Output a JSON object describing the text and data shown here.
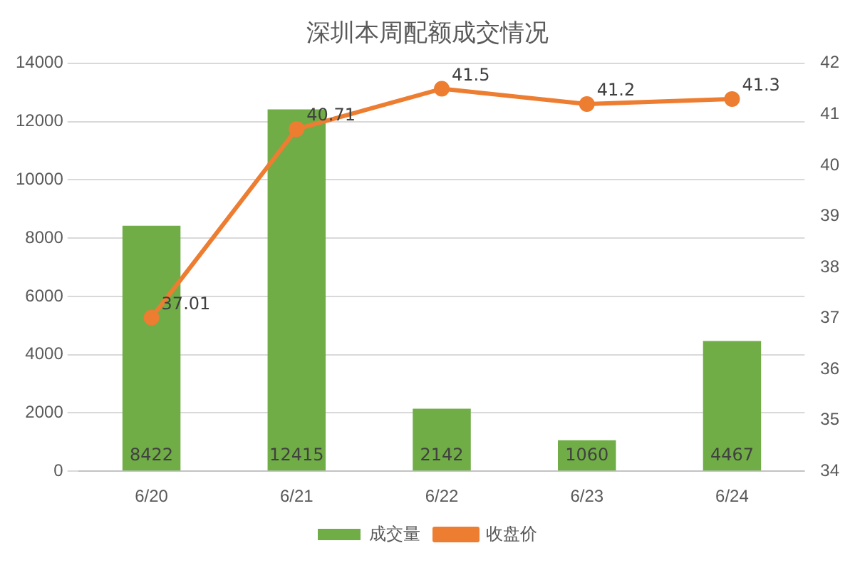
{
  "chart_data": {
    "type": "bar",
    "title": "深圳本周配额成交情况",
    "categories": [
      "6/20",
      "6/21",
      "6/22",
      "6/23",
      "6/24"
    ],
    "series": [
      {
        "name": "成交量",
        "color": "#70ad47",
        "values": [
          8422,
          12415,
          2142,
          1060,
          4467
        ]
      },
      {
        "name": "收盘价",
        "type": "line",
        "axis": "y2",
        "color": "#ed7d31",
        "values": [
          37.01,
          40.71,
          41.5,
          41.2,
          41.3
        ]
      }
    ],
    "ylim": [
      0,
      14000
    ],
    "yticks": [
      0,
      2000,
      4000,
      6000,
      8000,
      10000,
      12000,
      14000
    ],
    "y2lim": [
      34,
      42
    ],
    "y2ticks": [
      34,
      35,
      36,
      37,
      38,
      39,
      40,
      41,
      42
    ],
    "grid": "y",
    "legend": "bottom",
    "marker": "circle",
    "line_style": "solid",
    "data_labels": true
  }
}
